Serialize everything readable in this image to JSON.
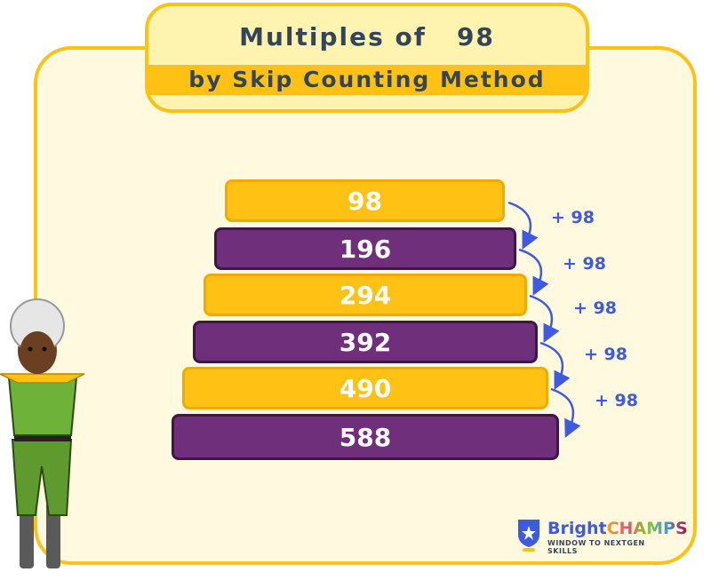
{
  "title": {
    "line1": "Multiples of",
    "number": "98",
    "line2": "by Skip Counting Method"
  },
  "multiples": [
    "98",
    "196",
    "294",
    "392",
    "490",
    "588"
  ],
  "step_labels": [
    "+ 98",
    "+ 98",
    "+ 98",
    "+ 98",
    "+ 98"
  ],
  "colors": {
    "yellow": "#FFC114",
    "purple": "#6F2F7A",
    "arrow": "#3D5AE0",
    "background": "#FFF9E0"
  },
  "logo": {
    "brand_part1": "Bright",
    "brand_part2": "CHAMPS",
    "tagline": "WINDOW TO NEXTGEN SKILLS"
  }
}
